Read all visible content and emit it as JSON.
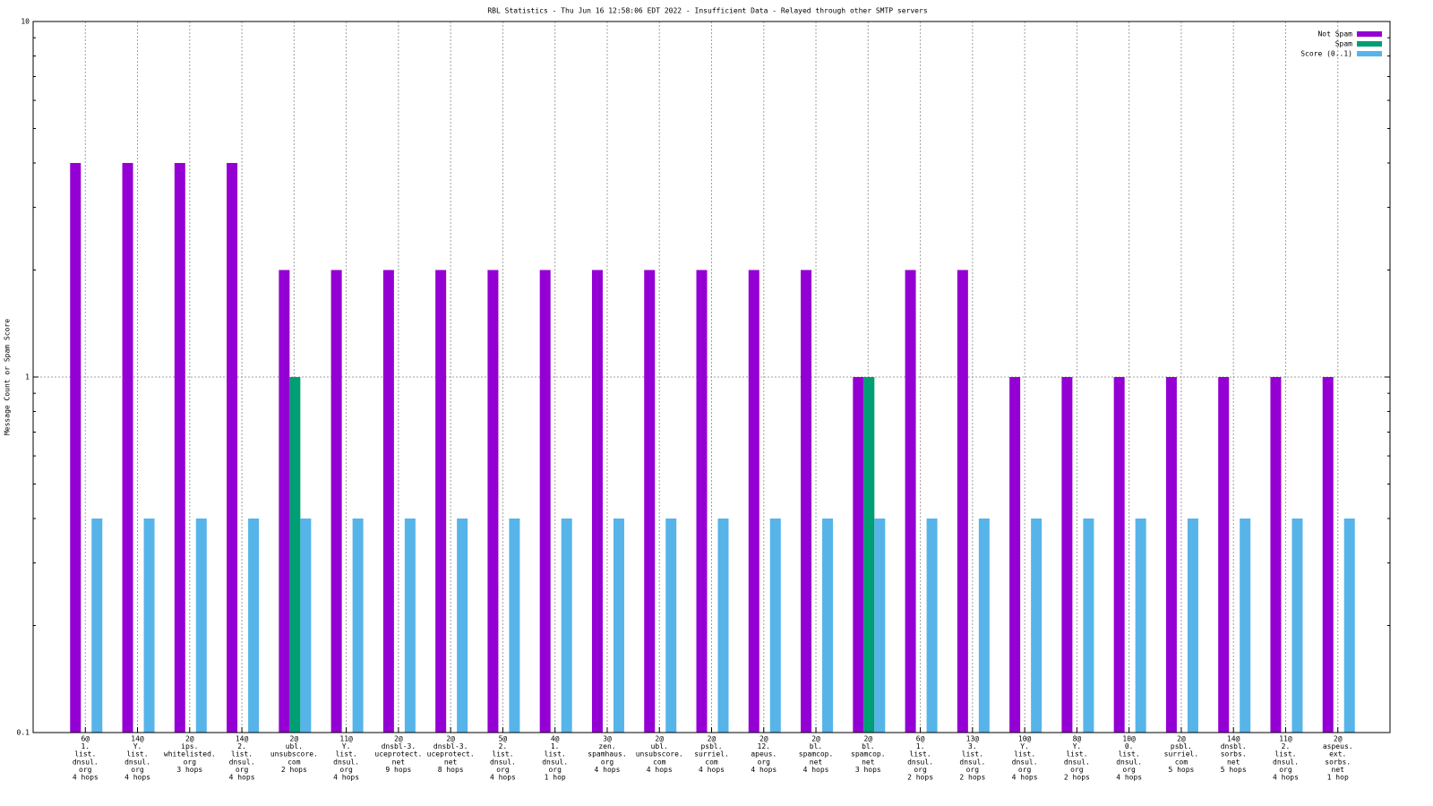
{
  "chart_data": {
    "type": "bar",
    "title": "RBL Statistics - Thu Jun 16 12:58:06 EDT 2022 - Insufficient Data - Relayed through other SMTP servers",
    "ylabel": "Message Count or Spam Score",
    "categories": [
      [
        "6@",
        "1.",
        "list.",
        "dnsul.",
        "org",
        "4 hops"
      ],
      [
        "14@",
        "Y.",
        "list.",
        "dnsul.",
        "org",
        "4 hops"
      ],
      [
        "2@",
        "ips.",
        "whitelisted.",
        "org",
        "3 hops"
      ],
      [
        "14@",
        "2.",
        "list.",
        "dnsul.",
        "org",
        "4 hops"
      ],
      [
        "2@",
        "ubl.",
        "unsubscore.",
        "com",
        "2 hops"
      ],
      [
        "11@",
        "Y.",
        "list.",
        "dnsul.",
        "org",
        "4 hops"
      ],
      [
        "2@",
        "dnsbl-3.",
        "uceprotect.",
        "net",
        "9 hops"
      ],
      [
        "2@",
        "dnsbl-3.",
        "uceprotect.",
        "net",
        "8 hops"
      ],
      [
        "5@",
        "2.",
        "list.",
        "dnsul.",
        "org",
        "4 hops"
      ],
      [
        "4@",
        "1.",
        "list.",
        "dnsul.",
        "org",
        "1 hop"
      ],
      [
        "3@",
        "zen.",
        "spamhaus.",
        "org",
        "4 hops"
      ],
      [
        "2@",
        "ubl.",
        "unsubscore.",
        "com",
        "4 hops"
      ],
      [
        "2@",
        "psbl.",
        "surriel.",
        "com",
        "4 hops"
      ],
      [
        "2@",
        "12.",
        "apeus.",
        "org",
        "4 hops"
      ],
      [
        "2@",
        "bl.",
        "spamcop.",
        "net",
        "4 hops"
      ],
      [
        "2@",
        "bl.",
        "spamcop.",
        "net",
        "3 hops"
      ],
      [
        "6@",
        "1.",
        "list.",
        "dnsul.",
        "org",
        "2 hops"
      ],
      [
        "13@",
        "3.",
        "list.",
        "dnsul.",
        "org",
        "2 hops"
      ],
      [
        "10@",
        "Y.",
        "list.",
        "dnsul.",
        "org",
        "4 hops"
      ],
      [
        "8@",
        "Y.",
        "list.",
        "dnsul.",
        "org",
        "2 hops"
      ],
      [
        "10@",
        "0.",
        "list.",
        "dnsul.",
        "org",
        "4 hops"
      ],
      [
        "2@",
        "psbl.",
        "surriel.",
        "com",
        "5 hops"
      ],
      [
        "14@",
        "dnsbl.",
        "sorbs.",
        "net",
        "5 hops"
      ],
      [
        "11@",
        "2.",
        "list.",
        "dnsul.",
        "org",
        "4 hops"
      ],
      [
        "2@",
        "aspeus.",
        "ext.",
        "sorbs.",
        "net",
        "1 hop"
      ]
    ],
    "series": [
      {
        "name": "Not Spam",
        "color": "#9400d3",
        "values": [
          4,
          4,
          4,
          4,
          2,
          2,
          2,
          2,
          2,
          2,
          2,
          2,
          2,
          2,
          2,
          1,
          2,
          2,
          1,
          1,
          1,
          1,
          1,
          1,
          1
        ]
      },
      {
        "name": "Spam",
        "color": "#009e73",
        "values": [
          null,
          null,
          null,
          null,
          1,
          null,
          null,
          null,
          null,
          null,
          null,
          null,
          null,
          null,
          null,
          1,
          null,
          null,
          null,
          null,
          null,
          null,
          null,
          null,
          null
        ]
      },
      {
        "name": "Score (0..1)",
        "color": "#56b4e9",
        "values": [
          0.4,
          0.4,
          0.4,
          0.4,
          0.4,
          0.4,
          0.4,
          0.4,
          0.4,
          0.4,
          0.4,
          0.4,
          0.4,
          0.4,
          0.4,
          0.4,
          0.4,
          0.4,
          0.4,
          0.4,
          0.4,
          0.4,
          0.4,
          0.4,
          0.4
        ]
      }
    ],
    "ylim": [
      0.1,
      10
    ],
    "yticks": [
      0.1,
      1,
      10
    ],
    "log_y": true,
    "grid": true,
    "legend": "top-right"
  }
}
